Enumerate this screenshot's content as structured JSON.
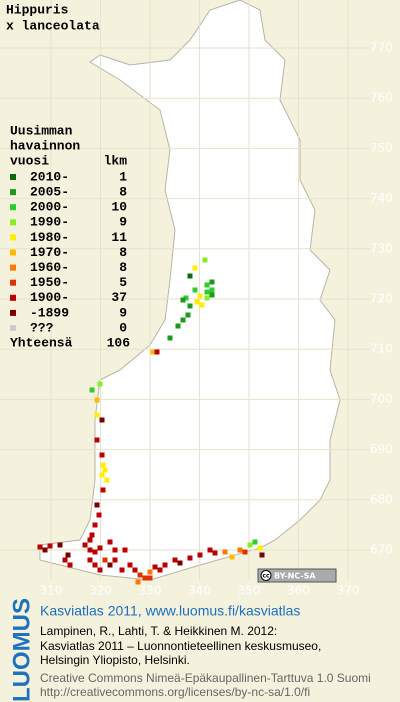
{
  "title": {
    "genus": "Hippuris",
    "species": "x lanceolata"
  },
  "legend": {
    "header": [
      "Uusimman",
      "havainnon"
    ],
    "col_year": "vuosi",
    "col_count": "lkm",
    "rows": [
      {
        "label": "2010-",
        "color": "#0b6b0b",
        "count": 1
      },
      {
        "label": "2005-",
        "color": "#1d9a1d",
        "count": 8
      },
      {
        "label": "2000-",
        "color": "#2ecc2e",
        "count": 10
      },
      {
        "label": "1990-",
        "color": "#88ee22",
        "count": 9
      },
      {
        "label": "1980-",
        "color": "#ffee00",
        "count": 11
      },
      {
        "label": "1970-",
        "color": "#ffbb00",
        "count": 8
      },
      {
        "label": "1960-",
        "color": "#ff7700",
        "count": 8
      },
      {
        "label": "1950-",
        "color": "#dd3300",
        "count": 5
      },
      {
        "label": "1900-",
        "color": "#bb0000",
        "count": 37
      },
      {
        "label": "-1899",
        "color": "#7a0000",
        "count": 9
      },
      {
        "label": "???",
        "color": "#cccccc",
        "count": 0
      }
    ],
    "total_label": "Yhteensä",
    "total": 106
  },
  "grid": {
    "north": [
      770,
      760,
      750,
      740,
      730,
      720,
      710,
      700,
      690,
      680,
      670
    ],
    "east": [
      310,
      320,
      330,
      340,
      350,
      360,
      370
    ]
  },
  "badge": {
    "cc": "cc",
    "text": "BY-NC-SA"
  },
  "footer": {
    "logo": "LUOMUS",
    "link": "Kasviatlas 2011, www.luomus.fi/kasviatlas",
    "citation": [
      "Lampinen, R., Lahti, T. & Heikkinen M. 2012:",
      "Kasviatlas 2011 – Luonnontieteellinen keskusmuseo,",
      "Helsingin Yliopisto, Helsinki."
    ],
    "license": [
      "Creative Commons Nimeä-Epäkaupallinen-Tarttuva 1.0 Suomi",
      "http://creativecommons.org/licenses/by-nc-sa/1.0/fi"
    ]
  }
}
